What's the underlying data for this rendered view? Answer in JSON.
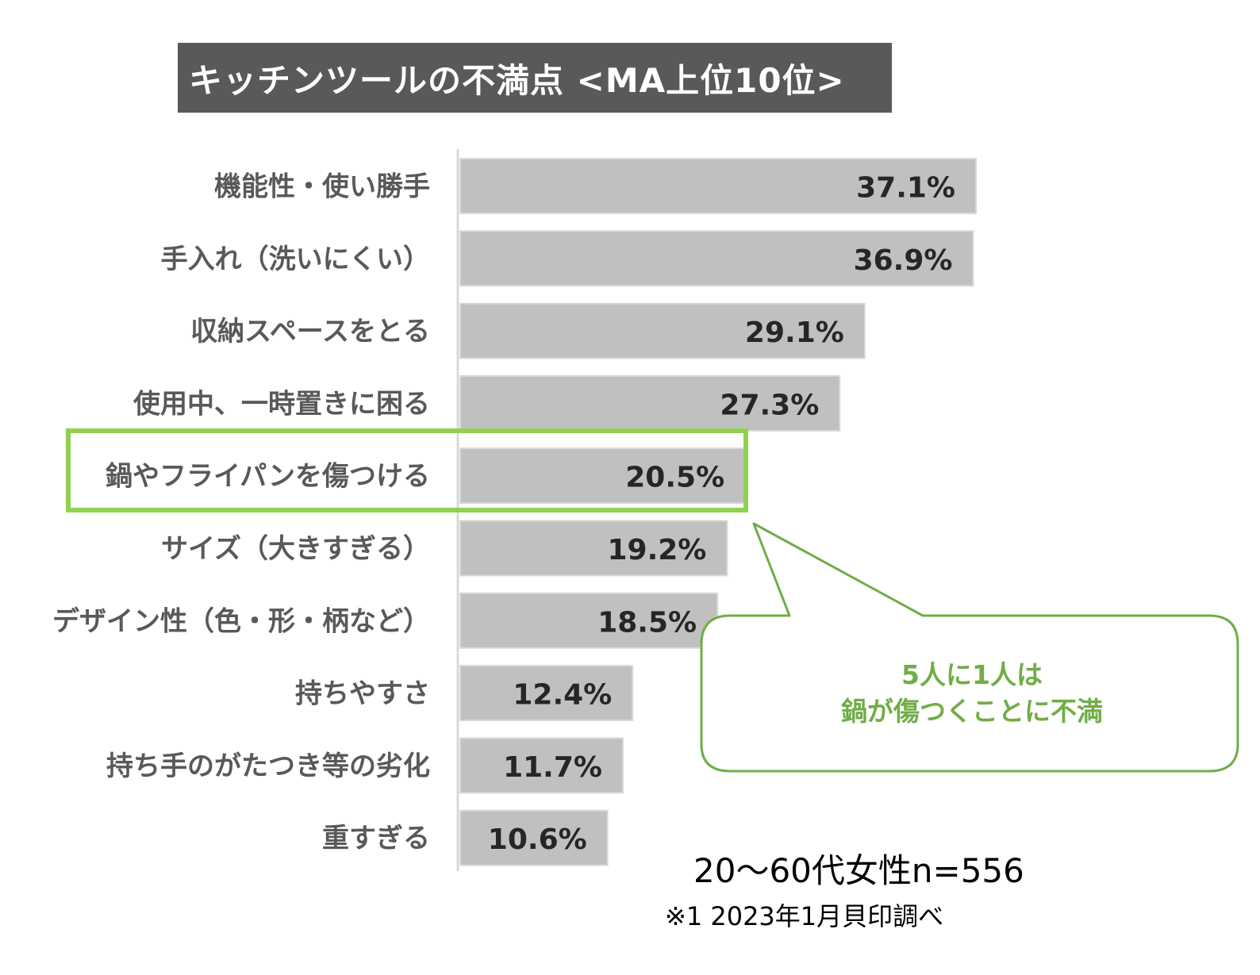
{
  "title": "キッチンツールの不満点 <MA上位10位>",
  "chart_data": {
    "type": "bar",
    "orientation": "horizontal",
    "categories": [
      "機能性・使い勝手",
      "手入れ（洗いにくい）",
      "収納スペースをとる",
      "使用中、一時置きに困る",
      "鍋やフライパンを傷つける",
      "サイズ（大きすぎる）",
      "デザイン性（色・形・柄など）",
      "持ちやすさ",
      "持ち手のがたつき等の劣化",
      "重すぎる"
    ],
    "values": [
      37.1,
      36.9,
      29.1,
      27.3,
      20.5,
      19.2,
      18.5,
      12.4,
      11.7,
      10.6
    ],
    "data_labels": [
      "37.1%",
      "36.9%",
      "29.1%",
      "27.3%",
      "20.5%",
      "19.2%",
      "18.5%",
      "12.4%",
      "11.7%",
      "10.6%"
    ],
    "highlighted_category": "鍋やフライパンを傷つける",
    "bar_color": "#c0c0c0",
    "highlight_color": "#92d050",
    "xlim": [
      0,
      37.1
    ],
    "grid": false
  },
  "callout": {
    "line1": "5人に1人は",
    "line2": "鍋が傷つくことに不満",
    "text_color": "#70ad47",
    "border_color": "#70ad47"
  },
  "notes": {
    "sample": "20～60代女性n=556",
    "source": "※1 2023年1月貝印調べ"
  }
}
